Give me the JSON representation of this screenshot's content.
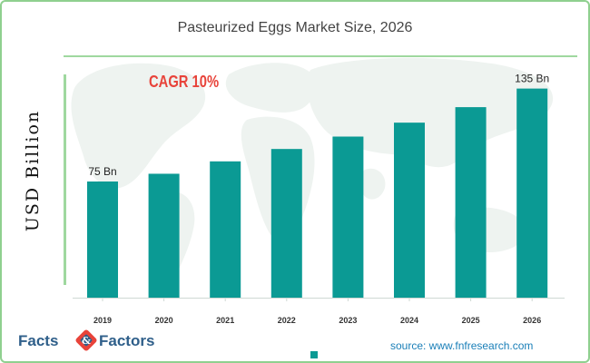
{
  "chart_data": {
    "type": "bar",
    "title": "Pasteurized Eggs Market Size, 2026",
    "ylabel": "USD Billion",
    "xlabel": "",
    "categories": [
      "2019",
      "2020",
      "2021",
      "2022",
      "2023",
      "2024",
      "2025",
      "2026"
    ],
    "values": [
      75,
      80,
      88,
      96,
      104,
      113,
      123,
      135
    ],
    "data_labels": [
      "75 Bn",
      "",
      "",
      "",
      "",
      "",
      "",
      "135 Bn"
    ],
    "ylim": [
      0,
      150
    ],
    "annotation": "CAGR 10%",
    "bar_color": "#0b9a94",
    "annotation_color": "#e8433a",
    "grid": false
  },
  "source": "source: www.fnfresearch.com",
  "logo": {
    "facts": "Facts",
    "factors": "Factors"
  }
}
